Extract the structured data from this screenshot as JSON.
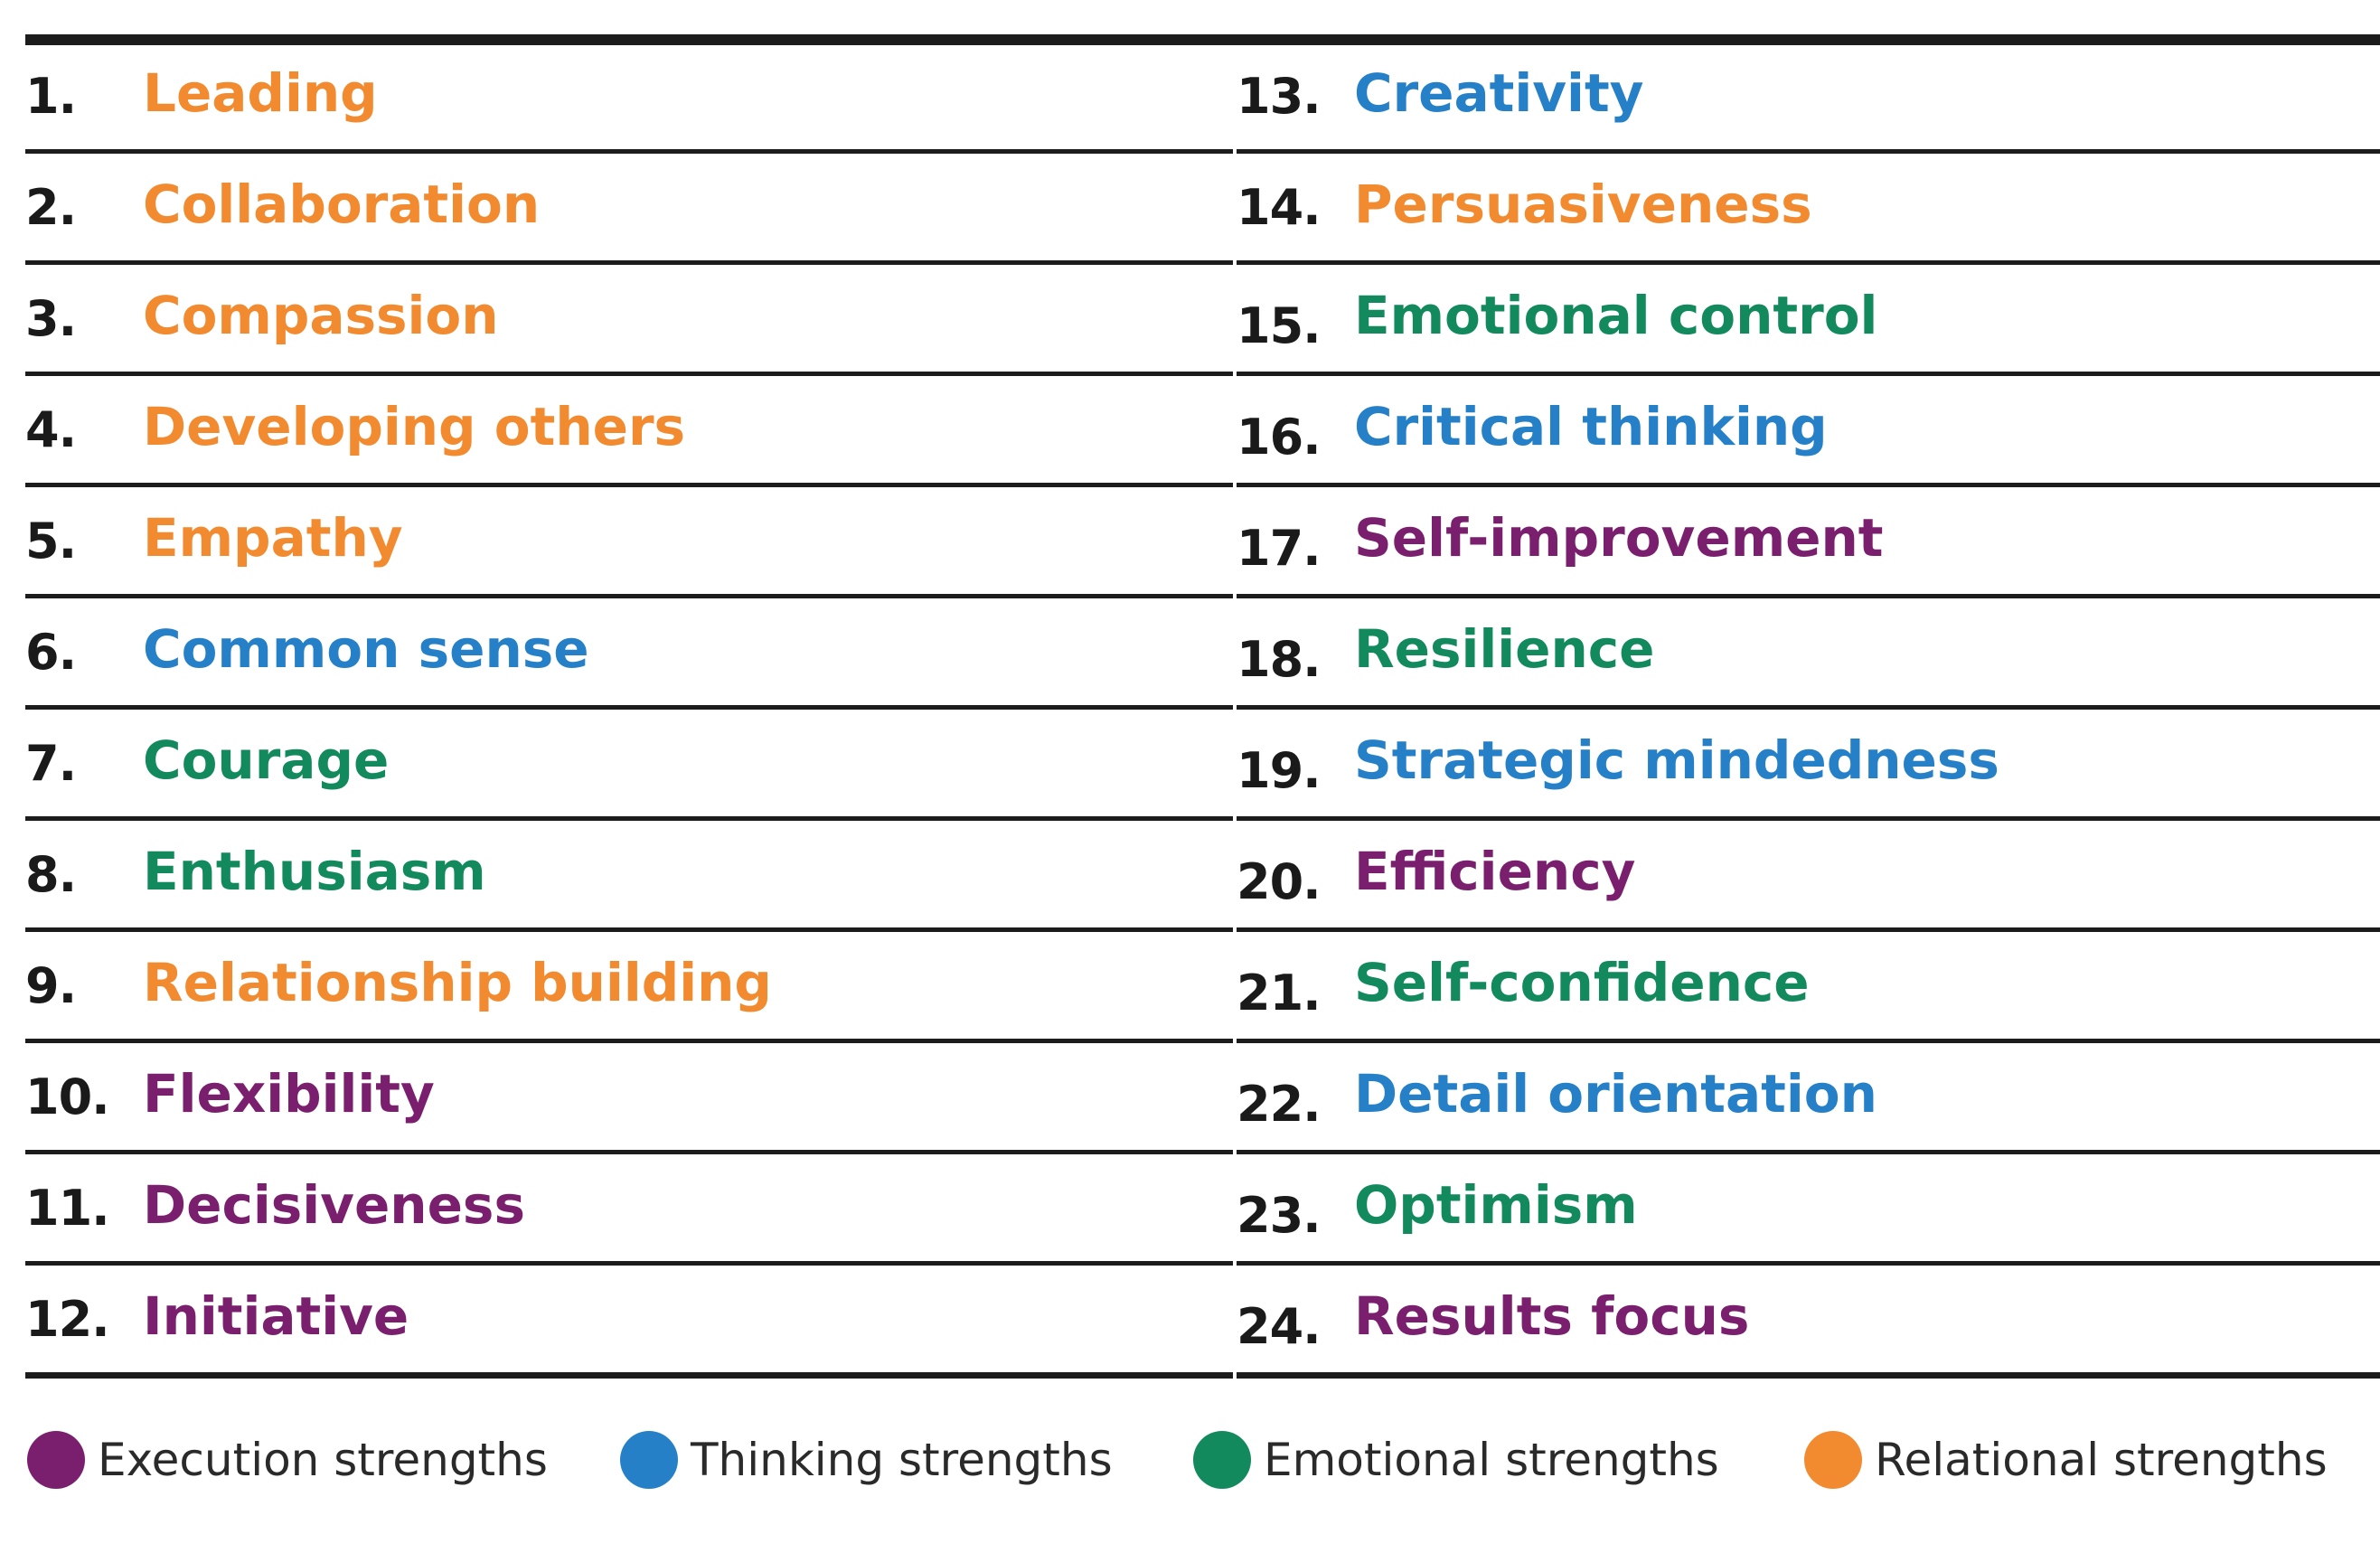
{
  "colors": {
    "execution": "#7a1f6e",
    "thinking": "#2680c8",
    "emotional": "#138a5e",
    "relational": "#f28a30"
  },
  "rows": [
    {
      "num": "1.",
      "label": "Leading",
      "category": "relational"
    },
    {
      "num": "2.",
      "label": "Collaboration",
      "category": "relational"
    },
    {
      "num": "3.",
      "label": "Compassion",
      "category": "relational"
    },
    {
      "num": "4.",
      "label": "Developing others",
      "category": "relational"
    },
    {
      "num": "5.",
      "label": "Empathy",
      "category": "relational"
    },
    {
      "num": "6.",
      "label": "Common sense",
      "category": "thinking"
    },
    {
      "num": "7.",
      "label": "Courage",
      "category": "emotional"
    },
    {
      "num": "8.",
      "label": "Enthusiasm",
      "category": "emotional"
    },
    {
      "num": "9.",
      "label": "Relationship building",
      "category": "relational"
    },
    {
      "num": "10.",
      "label": "Flexibility",
      "category": "execution"
    },
    {
      "num": "11.",
      "label": "Decisiveness",
      "category": "execution"
    },
    {
      "num": "12.",
      "label": "Initiative",
      "category": "execution"
    },
    {
      "num": "13.",
      "label": "Creativity",
      "category": "thinking"
    },
    {
      "num": "14.",
      "label": "Persuasiveness",
      "category": "relational"
    },
    {
      "num": "15.",
      "label": "Emotional control",
      "category": "emotional"
    },
    {
      "num": "16.",
      "label": "Critical thinking",
      "category": "thinking"
    },
    {
      "num": "17.",
      "label": "Self-improvement",
      "category": "execution"
    },
    {
      "num": "18.",
      "label": "Resilience",
      "category": "emotional"
    },
    {
      "num": "19.",
      "label": "Strategic mindedness",
      "category": "thinking"
    },
    {
      "num": "20.",
      "label": "Efficiency",
      "category": "execution"
    },
    {
      "num": "21.",
      "label": "Self-confidence",
      "category": "emotional"
    },
    {
      "num": "22.",
      "label": "Detail orientation",
      "category": "thinking"
    },
    {
      "num": "23.",
      "label": "Optimism",
      "category": "emotional"
    },
    {
      "num": "24.",
      "label": "Results focus",
      "category": "execution"
    }
  ],
  "legend": [
    {
      "label": "Execution strengths",
      "category": "execution"
    },
    {
      "label": "Thinking strengths",
      "category": "thinking"
    },
    {
      "label": "Emotional strengths",
      "category": "emotional"
    },
    {
      "label": "Relational strengths",
      "category": "relational"
    }
  ]
}
